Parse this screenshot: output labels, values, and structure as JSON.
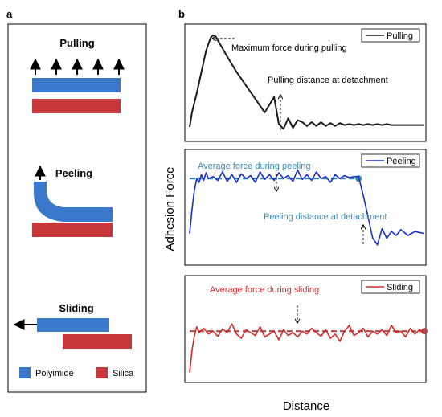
{
  "panels": {
    "a": {
      "letter": "a",
      "modes": [
        {
          "key": "pulling",
          "title": "Pulling"
        },
        {
          "key": "peeling",
          "title": "Peeling"
        },
        {
          "key": "sliding",
          "title": "Sliding"
        }
      ],
      "legend": [
        {
          "label": "Polyimide",
          "color": "#3a78c9"
        },
        {
          "label": "Silica",
          "color": "#c8373b"
        }
      ]
    },
    "b": {
      "letter": "b",
      "ylabel": "Adhesion Force",
      "xlabel": "Distance"
    }
  },
  "colors": {
    "pulling": "#1a1a1a",
    "peeling": "#1a2ecc",
    "peeling_annotation": "#3a8ab8",
    "sliding": "#d42a2a",
    "sliding_dashed": "#b04848",
    "polyimide": "#3a78c9",
    "silica": "#c8373b"
  },
  "chart_data": [
    {
      "type": "line",
      "legend": "Pulling",
      "legend_position": "top-right",
      "grid": false,
      "xlim": [
        0,
        100
      ],
      "ylim": [
        0,
        100
      ],
      "series": [
        {
          "name": "Pulling",
          "x": [
            0,
            1,
            3,
            5,
            7,
            9,
            10,
            11,
            12,
            16,
            20,
            24,
            28,
            32,
            36,
            38,
            40,
            42,
            44,
            46,
            48,
            50,
            52,
            54,
            56,
            58,
            60,
            62,
            64,
            66,
            68,
            70,
            72,
            74,
            76,
            78,
            80,
            82,
            84,
            86,
            88,
            90,
            93,
            96,
            100
          ],
          "y": [
            5,
            20,
            40,
            62,
            84,
            98,
            100,
            99,
            95,
            78,
            62,
            48,
            34,
            20,
            36,
            8,
            3,
            14,
            4,
            12,
            10,
            6,
            10,
            6,
            10,
            6,
            9,
            6,
            9,
            7,
            8,
            7,
            8,
            7,
            8,
            7,
            8,
            7,
            8,
            7,
            7,
            7,
            7,
            7,
            7
          ]
        }
      ],
      "annotations": [
        {
          "text": "Maximum force during pulling",
          "x": 11,
          "y": 100
        },
        {
          "text": "Pulling distance at detachment",
          "x": 40,
          "y": 3
        }
      ]
    },
    {
      "type": "line",
      "legend": "Peeling",
      "legend_position": "top-right",
      "grid": false,
      "xlim": [
        0,
        100
      ],
      "ylim": [
        0,
        100
      ],
      "series": [
        {
          "name": "Peeling",
          "x": [
            0,
            1,
            2,
            3,
            4,
            5,
            6,
            7,
            8,
            10,
            12,
            14,
            16,
            18,
            20,
            22,
            24,
            26,
            28,
            30,
            32,
            34,
            36,
            38,
            40,
            42,
            44,
            46,
            48,
            50,
            52,
            54,
            56,
            58,
            60,
            62,
            64,
            66,
            68,
            70,
            72,
            74,
            76,
            78,
            80,
            82,
            84,
            86,
            88,
            90,
            93,
            96,
            100
          ],
          "y": [
            30,
            55,
            75,
            88,
            84,
            92,
            86,
            94,
            88,
            90,
            86,
            95,
            85,
            92,
            84,
            93,
            88,
            91,
            84,
            95,
            87,
            92,
            86,
            94,
            88,
            91,
            85,
            97,
            87,
            92,
            86,
            95,
            88,
            90,
            84,
            92,
            88,
            91,
            89,
            90,
            90,
            70,
            48,
            25,
            18,
            35,
            25,
            32,
            28,
            34,
            28,
            32,
            30
          ]
        }
      ],
      "reference_lines": [
        {
          "y": 88,
          "x": [
            0,
            72
          ],
          "style": "dashed"
        }
      ],
      "annotations": [
        {
          "text": "Average force during peeling",
          "x": 42,
          "y": 88
        },
        {
          "text": "Peeling distance at detachment",
          "x": 80,
          "y": 18
        }
      ]
    },
    {
      "type": "line",
      "legend": "Sliding",
      "legend_position": "top-right",
      "grid": false,
      "xlim": [
        0,
        100
      ],
      "ylim": [
        0,
        100
      ],
      "series": [
        {
          "name": "Sliding",
          "x": [
            0,
            1,
            2,
            3,
            4,
            6,
            8,
            10,
            12,
            14,
            16,
            18,
            20,
            22,
            24,
            26,
            28,
            30,
            32,
            34,
            36,
            38,
            40,
            42,
            44,
            46,
            48,
            50,
            52,
            54,
            56,
            58,
            60,
            62,
            64,
            66,
            68,
            70,
            72,
            74,
            76,
            78,
            80,
            82,
            84,
            86,
            88,
            90,
            92,
            94,
            96,
            98,
            100
          ],
          "y": [
            5,
            35,
            55,
            68,
            60,
            66,
            58,
            62,
            55,
            65,
            60,
            72,
            58,
            52,
            64,
            60,
            56,
            68,
            54,
            58,
            62,
            50,
            64,
            56,
            60,
            54,
            62,
            58,
            66,
            60,
            55,
            64,
            52,
            58,
            48,
            62,
            70,
            56,
            60,
            66,
            54,
            62,
            58,
            64,
            56,
            70,
            60,
            62,
            54,
            66,
            58,
            64,
            60
          ]
        }
      ],
      "reference_lines": [
        {
          "y": 62,
          "x": [
            0,
            100
          ],
          "style": "dashed"
        }
      ],
      "annotations": [
        {
          "text": "Average force during sliding",
          "x": 48,
          "y": 62
        }
      ]
    }
  ]
}
